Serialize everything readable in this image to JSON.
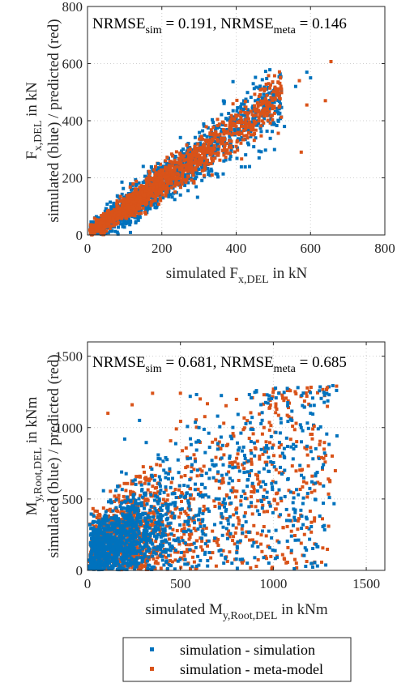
{
  "colors": {
    "simulation": "#0072BD",
    "meta": "#D95319",
    "grid": "#cfcfcf",
    "axis": "#262626"
  },
  "legend": {
    "entries": [
      {
        "label": "simulation - simulation",
        "color": "#0072BD"
      },
      {
        "label": "simulation - meta-model",
        "color": "#D95319"
      }
    ],
    "placement": "bottom"
  },
  "chart_data": [
    {
      "type": "scatter",
      "annotation": {
        "prefix": "NRMSE",
        "sub1": "sim",
        "mid": " = 0.191, NRMSE",
        "sub2": "meta",
        "suffix": " = 0.146"
      },
      "xlabel": {
        "pre": "simulated F",
        "sub": "x,DEL",
        "post": " in kN"
      },
      "ylabel": {
        "line1_pre": "F",
        "line1_sub": "x,DEL",
        "line1_post": " in kN",
        "line2": "simulated (blue) / predicted (red)"
      },
      "xlim": [
        0,
        800
      ],
      "ylim": [
        0,
        800
      ],
      "xticks": [
        0,
        200,
        400,
        600,
        800
      ],
      "yticks": [
        0,
        200,
        400,
        600,
        800
      ],
      "grid": true,
      "trend": {
        "slope": 0.93,
        "sim_spread": 42,
        "meta_spread": 30,
        "xmax": 660,
        "n": 1300
      },
      "series": [
        {
          "name": "simulation - simulation",
          "points": [
            [
              590,
              570
            ],
            [
              560,
              520
            ],
            [
              500,
              490
            ],
            [
              470,
              480
            ],
            [
              405,
              370
            ],
            [
              350,
              300
            ],
            [
              300,
              230
            ],
            [
              250,
              140
            ],
            [
              190,
              250
            ],
            [
              150,
              240
            ],
            [
              420,
              440
            ],
            [
              530,
              380
            ],
            [
              600,
              550
            ]
          ]
        },
        {
          "name": "simulation - meta-model",
          "points": [
            [
              655,
              607
            ],
            [
              640,
              470
            ],
            [
              590,
              455
            ],
            [
              575,
              290
            ],
            [
              570,
              540
            ],
            [
              450,
              390
            ],
            [
              400,
              310
            ],
            [
              330,
              280
            ],
            [
              260,
              260
            ],
            [
              210,
              260
            ],
            [
              160,
              110
            ]
          ]
        }
      ]
    },
    {
      "type": "scatter",
      "annotation": {
        "prefix": "NRMSE",
        "sub1": "sim",
        "mid": " = 0.681, NRMSE",
        "sub2": "meta",
        "suffix": " = 0.685"
      },
      "xlabel": {
        "pre": "simulated M",
        "sub": "y,Root,DEL",
        "post": " in kNm"
      },
      "ylabel": {
        "line1_pre": "M",
        "line1_sub": "y,Root,DEL",
        "line1_post": " in kNm",
        "line2": "simulated (blue) / predicted (red)"
      },
      "xlim": [
        0,
        1600
      ],
      "ylim": [
        0,
        1600
      ],
      "xticks": [
        0,
        500,
        1000,
        1500
      ],
      "yticks": [
        0,
        500,
        1000,
        1500
      ],
      "grid": true,
      "cloud": {
        "xmax": 1350,
        "ymax": 1300,
        "n": 1400
      },
      "series": [
        {
          "name": "simulation - simulation",
          "points": [
            [
              1340,
              1260
            ],
            [
              1300,
              1230
            ],
            [
              1200,
              1100
            ],
            [
              1150,
              1000
            ],
            [
              1100,
              1050
            ],
            [
              1050,
              820
            ],
            [
              700,
              1080
            ],
            [
              600,
              1000
            ],
            [
              280,
              1050
            ],
            [
              200,
              920
            ],
            [
              1160,
              320
            ],
            [
              1250,
              380
            ],
            [
              1020,
              90
            ]
          ]
        },
        {
          "name": "simulation - meta-model",
          "points": [
            [
              1340,
              1290
            ],
            [
              1290,
              1280
            ],
            [
              1180,
              1220
            ],
            [
              1220,
              1010
            ],
            [
              1260,
              790
            ],
            [
              1200,
              860
            ],
            [
              1150,
              700
            ],
            [
              950,
              1230
            ],
            [
              500,
              1240
            ],
            [
              350,
              1240
            ],
            [
              240,
              1160
            ],
            [
              110,
              1100
            ],
            [
              1180,
              300
            ],
            [
              1050,
              110
            ]
          ]
        }
      ]
    }
  ]
}
